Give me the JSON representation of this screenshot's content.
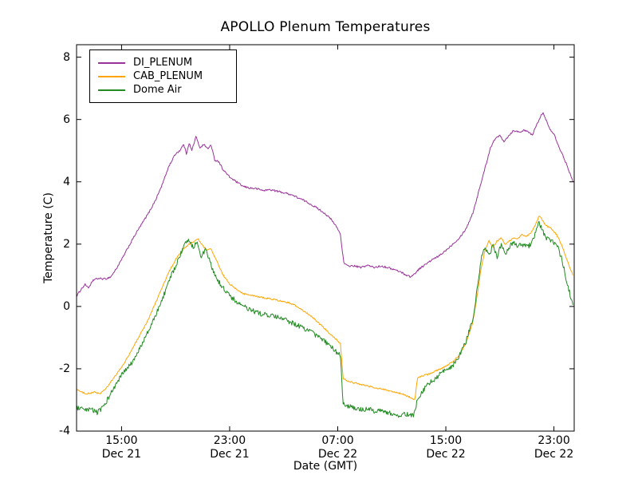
{
  "chart_data": {
    "type": "line",
    "title": "APOLLO Plenum Temperatures",
    "xlabel": "Date (GMT)",
    "ylabel": "Temperature (C)",
    "x_hours_from": "Dec 21 00:00 GMT",
    "xlim": [
      11.67,
      48.5
    ],
    "ylim": [
      -4,
      8.4
    ],
    "yticks": [
      -4,
      -2,
      0,
      2,
      4,
      6,
      8
    ],
    "xticks": [
      {
        "hour": 15,
        "time": "15:00",
        "date": "Dec 21"
      },
      {
        "hour": 23,
        "time": "23:00",
        "date": "Dec 21"
      },
      {
        "hour": 31,
        "time": "07:00",
        "date": "Dec 22"
      },
      {
        "hour": 39,
        "time": "15:00",
        "date": "Dec 22"
      },
      {
        "hour": 47,
        "time": "23:00",
        "date": "Dec 22"
      }
    ],
    "grid": false,
    "legend_position": "upper left",
    "background": "#ffffff",
    "axis_color": "#000000",
    "series": [
      {
        "name": "DI_PLENUM",
        "color": "#993399",
        "noise": 0.03,
        "points": [
          [
            11.7,
            0.35
          ],
          [
            12.0,
            0.55
          ],
          [
            12.3,
            0.7
          ],
          [
            12.6,
            0.6
          ],
          [
            12.9,
            0.85
          ],
          [
            13.3,
            0.9
          ],
          [
            13.8,
            0.88
          ],
          [
            14.2,
            0.95
          ],
          [
            14.6,
            1.2
          ],
          [
            15.0,
            1.5
          ],
          [
            15.5,
            1.9
          ],
          [
            16.0,
            2.3
          ],
          [
            16.5,
            2.65
          ],
          [
            17.0,
            3.0
          ],
          [
            17.5,
            3.4
          ],
          [
            18.0,
            3.9
          ],
          [
            18.5,
            4.5
          ],
          [
            19.0,
            4.9
          ],
          [
            19.3,
            5.0
          ],
          [
            19.6,
            5.2
          ],
          [
            19.8,
            4.9
          ],
          [
            20.0,
            5.25
          ],
          [
            20.2,
            5.0
          ],
          [
            20.5,
            5.45
          ],
          [
            20.8,
            5.1
          ],
          [
            21.1,
            5.2
          ],
          [
            21.4,
            5.05
          ],
          [
            21.6,
            5.2
          ],
          [
            21.9,
            4.7
          ],
          [
            22.2,
            4.65
          ],
          [
            22.5,
            4.4
          ],
          [
            23.0,
            4.15
          ],
          [
            23.5,
            4.0
          ],
          [
            24.0,
            3.85
          ],
          [
            24.5,
            3.8
          ],
          [
            25.0,
            3.78
          ],
          [
            25.5,
            3.72
          ],
          [
            26.0,
            3.75
          ],
          [
            26.5,
            3.7
          ],
          [
            27.0,
            3.65
          ],
          [
            27.5,
            3.6
          ],
          [
            28.0,
            3.5
          ],
          [
            28.5,
            3.4
          ],
          [
            29.0,
            3.28
          ],
          [
            29.5,
            3.15
          ],
          [
            30.0,
            3.0
          ],
          [
            30.5,
            2.8
          ],
          [
            31.0,
            2.5
          ],
          [
            31.2,
            2.3
          ],
          [
            31.45,
            1.4
          ],
          [
            31.7,
            1.3
          ],
          [
            32.2,
            1.3
          ],
          [
            32.7,
            1.25
          ],
          [
            33.2,
            1.32
          ],
          [
            33.7,
            1.25
          ],
          [
            34.2,
            1.3
          ],
          [
            34.7,
            1.25
          ],
          [
            35.2,
            1.18
          ],
          [
            35.7,
            1.1
          ],
          [
            36.1,
            1.0
          ],
          [
            36.4,
            0.95
          ],
          [
            36.7,
            1.05
          ],
          [
            37.0,
            1.2
          ],
          [
            37.5,
            1.35
          ],
          [
            38.0,
            1.5
          ],
          [
            38.5,
            1.62
          ],
          [
            39.0,
            1.8
          ],
          [
            39.5,
            2.0
          ],
          [
            40.0,
            2.2
          ],
          [
            40.5,
            2.5
          ],
          [
            41.0,
            3.0
          ],
          [
            41.5,
            3.8
          ],
          [
            42.0,
            4.6
          ],
          [
            42.3,
            5.1
          ],
          [
            42.6,
            5.35
          ],
          [
            43.0,
            5.5
          ],
          [
            43.3,
            5.3
          ],
          [
            43.6,
            5.45
          ],
          [
            44.0,
            5.65
          ],
          [
            44.4,
            5.6
          ],
          [
            44.8,
            5.65
          ],
          [
            45.1,
            5.6
          ],
          [
            45.4,
            5.5
          ],
          [
            45.7,
            5.8
          ],
          [
            46.0,
            6.1
          ],
          [
            46.2,
            6.2
          ],
          [
            46.4,
            6.0
          ],
          [
            46.7,
            5.7
          ],
          [
            47.0,
            5.55
          ],
          [
            47.3,
            5.2
          ],
          [
            47.7,
            4.8
          ],
          [
            48.0,
            4.5
          ],
          [
            48.4,
            4.0
          ]
        ]
      },
      {
        "name": "CAB_PLENUM",
        "color": "#ffa500",
        "noise": 0.025,
        "points": [
          [
            11.7,
            -2.65
          ],
          [
            12.0,
            -2.75
          ],
          [
            12.5,
            -2.8
          ],
          [
            13.0,
            -2.75
          ],
          [
            13.4,
            -2.8
          ],
          [
            13.7,
            -2.7
          ],
          [
            14.0,
            -2.55
          ],
          [
            14.5,
            -2.25
          ],
          [
            15.0,
            -1.95
          ],
          [
            15.5,
            -1.6
          ],
          [
            16.0,
            -1.2
          ],
          [
            16.5,
            -0.8
          ],
          [
            17.0,
            -0.4
          ],
          [
            17.5,
            0.1
          ],
          [
            18.0,
            0.6
          ],
          [
            18.5,
            1.1
          ],
          [
            19.0,
            1.5
          ],
          [
            19.5,
            1.8
          ],
          [
            20.0,
            2.0
          ],
          [
            20.4,
            2.1
          ],
          [
            20.7,
            2.15
          ],
          [
            21.0,
            1.95
          ],
          [
            21.3,
            1.8
          ],
          [
            21.6,
            1.85
          ],
          [
            22.0,
            1.5
          ],
          [
            22.3,
            1.2
          ],
          [
            22.6,
            0.95
          ],
          [
            23.0,
            0.72
          ],
          [
            23.5,
            0.55
          ],
          [
            24.0,
            0.42
          ],
          [
            24.5,
            0.36
          ],
          [
            25.0,
            0.32
          ],
          [
            25.5,
            0.28
          ],
          [
            26.0,
            0.25
          ],
          [
            26.5,
            0.2
          ],
          [
            27.0,
            0.16
          ],
          [
            27.5,
            0.1
          ],
          [
            28.0,
            0.0
          ],
          [
            28.5,
            -0.15
          ],
          [
            29.0,
            -0.3
          ],
          [
            29.5,
            -0.5
          ],
          [
            30.0,
            -0.7
          ],
          [
            30.5,
            -0.9
          ],
          [
            31.0,
            -1.1
          ],
          [
            31.2,
            -1.2
          ],
          [
            31.4,
            -2.3
          ],
          [
            31.7,
            -2.4
          ],
          [
            32.2,
            -2.45
          ],
          [
            32.7,
            -2.5
          ],
          [
            33.2,
            -2.55
          ],
          [
            33.7,
            -2.6
          ],
          [
            34.2,
            -2.65
          ],
          [
            34.7,
            -2.7
          ],
          [
            35.2,
            -2.75
          ],
          [
            35.7,
            -2.8
          ],
          [
            36.2,
            -2.88
          ],
          [
            36.5,
            -2.95
          ],
          [
            36.7,
            -3.0
          ],
          [
            36.9,
            -2.3
          ],
          [
            37.3,
            -2.22
          ],
          [
            37.7,
            -2.18
          ],
          [
            38.1,
            -2.1
          ],
          [
            38.5,
            -2.02
          ],
          [
            39.0,
            -1.92
          ],
          [
            39.5,
            -1.78
          ],
          [
            40.0,
            -1.55
          ],
          [
            40.5,
            -1.15
          ],
          [
            41.0,
            -0.5
          ],
          [
            41.3,
            0.3
          ],
          [
            41.6,
            1.2
          ],
          [
            41.9,
            1.8
          ],
          [
            42.2,
            2.1
          ],
          [
            42.5,
            1.9
          ],
          [
            42.8,
            2.1
          ],
          [
            43.1,
            2.2
          ],
          [
            43.4,
            2.0
          ],
          [
            43.7,
            2.1
          ],
          [
            44.0,
            2.2
          ],
          [
            44.3,
            2.15
          ],
          [
            44.6,
            2.3
          ],
          [
            45.0,
            2.25
          ],
          [
            45.3,
            2.35
          ],
          [
            45.6,
            2.6
          ],
          [
            45.9,
            2.9
          ],
          [
            46.1,
            2.8
          ],
          [
            46.4,
            2.6
          ],
          [
            46.8,
            2.5
          ],
          [
            47.2,
            2.3
          ],
          [
            47.6,
            1.95
          ],
          [
            48.0,
            1.45
          ],
          [
            48.4,
            1.0
          ]
        ]
      },
      {
        "name": "Dome Air",
        "color": "#228b22",
        "noise": 0.08,
        "points": [
          [
            11.7,
            -3.25
          ],
          [
            12.0,
            -3.3
          ],
          [
            12.4,
            -3.35
          ],
          [
            12.8,
            -3.3
          ],
          [
            13.2,
            -3.4
          ],
          [
            13.5,
            -3.3
          ],
          [
            13.8,
            -3.1
          ],
          [
            14.2,
            -2.8
          ],
          [
            14.6,
            -2.5
          ],
          [
            15.0,
            -2.2
          ],
          [
            15.4,
            -2.0
          ],
          [
            15.8,
            -1.8
          ],
          [
            16.2,
            -1.5
          ],
          [
            16.6,
            -1.1
          ],
          [
            17.0,
            -0.8
          ],
          [
            17.4,
            -0.4
          ],
          [
            17.8,
            0.0
          ],
          [
            18.2,
            0.45
          ],
          [
            18.6,
            0.9
          ],
          [
            19.0,
            1.3
          ],
          [
            19.4,
            1.7
          ],
          [
            19.7,
            2.0
          ],
          [
            20.0,
            2.15
          ],
          [
            20.3,
            1.9
          ],
          [
            20.6,
            2.1
          ],
          [
            20.9,
            1.6
          ],
          [
            21.2,
            1.8
          ],
          [
            21.5,
            1.5
          ],
          [
            21.8,
            1.1
          ],
          [
            22.1,
            0.85
          ],
          [
            22.5,
            0.6
          ],
          [
            23.0,
            0.35
          ],
          [
            23.5,
            0.15
          ],
          [
            24.0,
            0.0
          ],
          [
            24.5,
            -0.1
          ],
          [
            25.0,
            -0.2
          ],
          [
            25.5,
            -0.25
          ],
          [
            26.0,
            -0.3
          ],
          [
            26.5,
            -0.35
          ],
          [
            27.0,
            -0.42
          ],
          [
            27.5,
            -0.5
          ],
          [
            28.0,
            -0.6
          ],
          [
            28.5,
            -0.7
          ],
          [
            29.0,
            -0.82
          ],
          [
            29.5,
            -0.95
          ],
          [
            30.0,
            -1.1
          ],
          [
            30.5,
            -1.3
          ],
          [
            31.0,
            -1.5
          ],
          [
            31.2,
            -1.6
          ],
          [
            31.4,
            -3.1
          ],
          [
            31.7,
            -3.2
          ],
          [
            32.2,
            -3.25
          ],
          [
            32.7,
            -3.3
          ],
          [
            33.2,
            -3.3
          ],
          [
            33.7,
            -3.35
          ],
          [
            34.2,
            -3.35
          ],
          [
            34.7,
            -3.4
          ],
          [
            35.2,
            -3.45
          ],
          [
            35.7,
            -3.5
          ],
          [
            36.2,
            -3.45
          ],
          [
            36.6,
            -3.5
          ],
          [
            36.9,
            -3.0
          ],
          [
            37.3,
            -2.7
          ],
          [
            37.7,
            -2.5
          ],
          [
            38.1,
            -2.35
          ],
          [
            38.5,
            -2.2
          ],
          [
            39.0,
            -2.05
          ],
          [
            39.5,
            -1.9
          ],
          [
            40.0,
            -1.6
          ],
          [
            40.5,
            -1.1
          ],
          [
            41.0,
            -0.4
          ],
          [
            41.3,
            0.5
          ],
          [
            41.6,
            1.5
          ],
          [
            41.9,
            1.9
          ],
          [
            42.2,
            1.6
          ],
          [
            42.5,
            2.0
          ],
          [
            42.8,
            1.6
          ],
          [
            43.1,
            2.0
          ],
          [
            43.4,
            1.7
          ],
          [
            43.7,
            1.9
          ],
          [
            44.0,
            2.1
          ],
          [
            44.3,
            1.9
          ],
          [
            44.6,
            2.0
          ],
          [
            45.0,
            1.9
          ],
          [
            45.3,
            2.0
          ],
          [
            45.6,
            2.3
          ],
          [
            45.9,
            2.7
          ],
          [
            46.1,
            2.5
          ],
          [
            46.4,
            2.2
          ],
          [
            46.8,
            2.1
          ],
          [
            47.2,
            2.0
          ],
          [
            47.6,
            1.5
          ],
          [
            48.0,
            0.7
          ],
          [
            48.4,
            0.05
          ]
        ]
      }
    ]
  }
}
